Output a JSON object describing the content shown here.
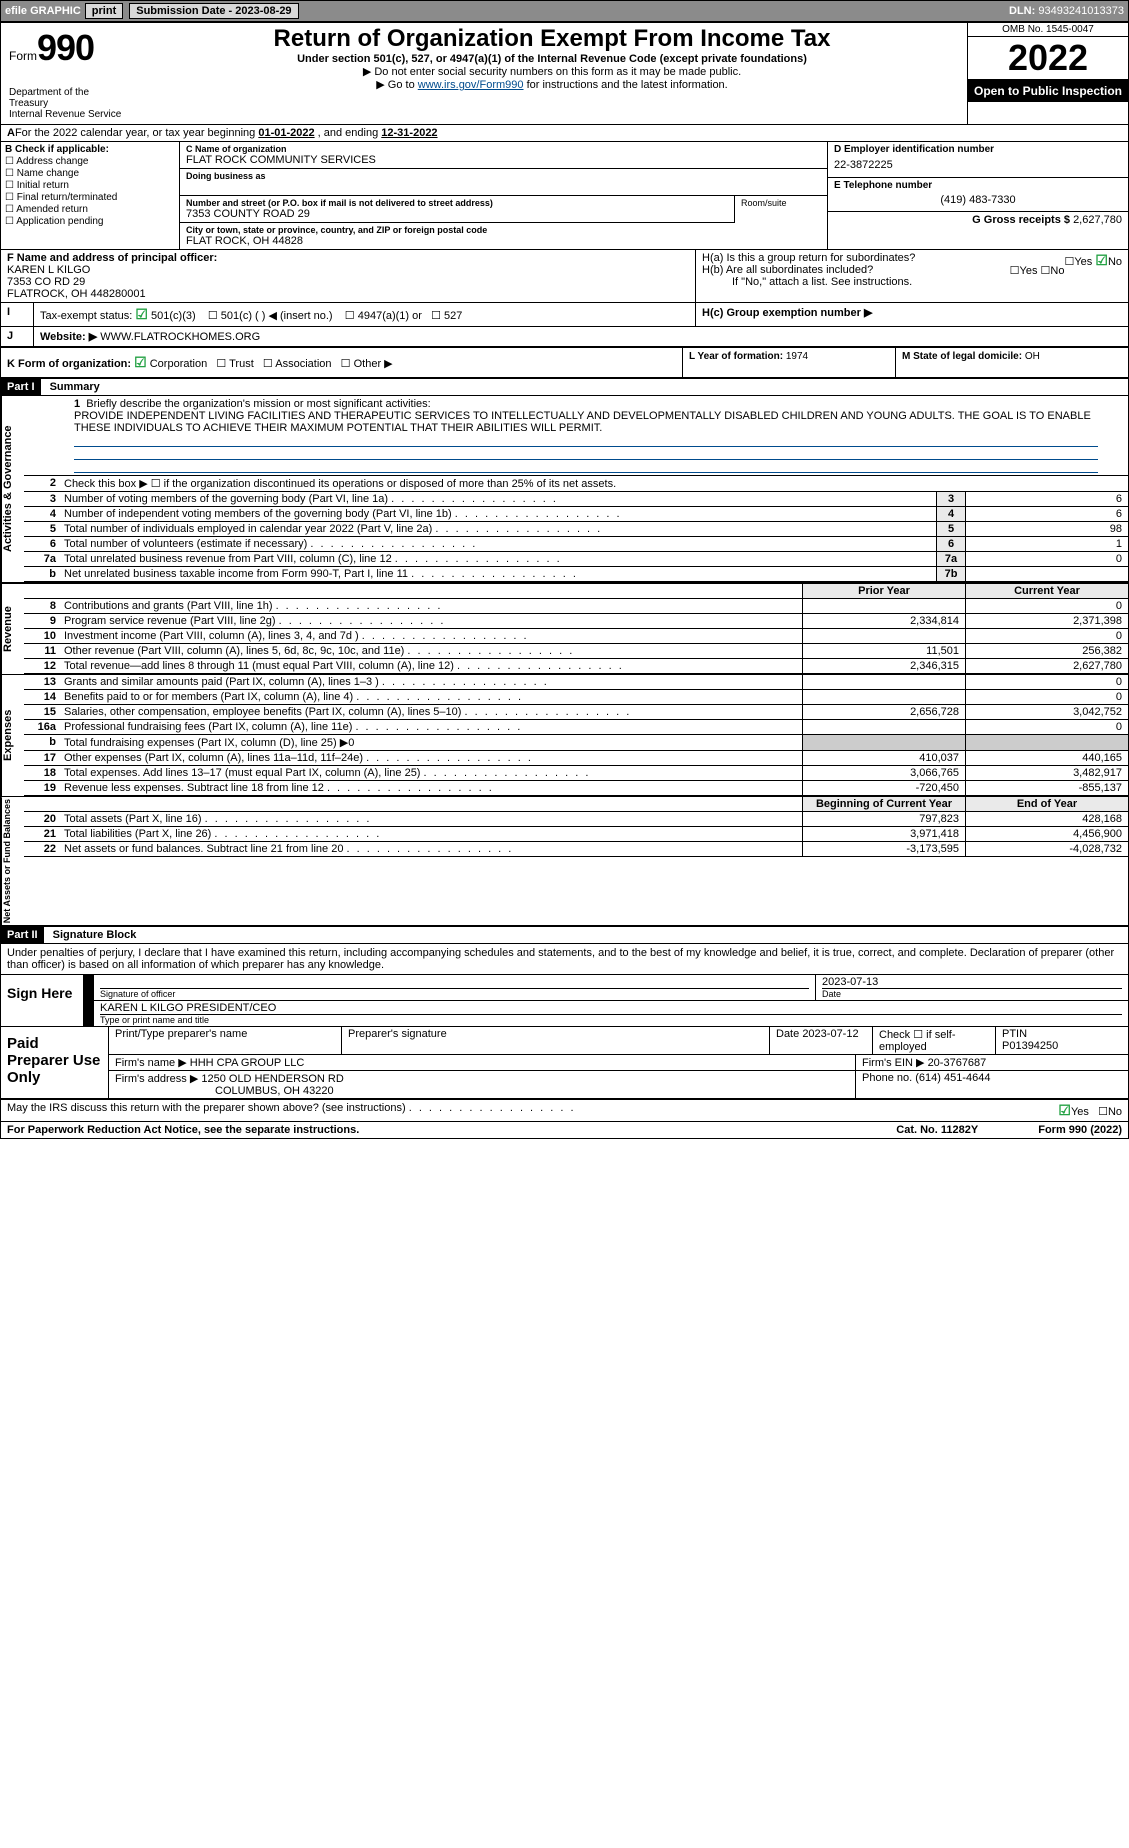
{
  "topbar": {
    "efile_label": "efile GRAPHIC",
    "print_btn": "print",
    "subdate_label": "Submission Date - ",
    "subdate": "2023-08-29",
    "dln_label": "DLN: ",
    "dln": "93493241013373"
  },
  "header": {
    "form_word": "Form",
    "form_num": "990",
    "title": "Return of Organization Exempt From Income Tax",
    "sub1": "Under section 501(c), 527, or 4947(a)(1) of the Internal Revenue Code (except private foundations)",
    "sub2": "▶ Do not enter social security numbers on this form as it may be made public.",
    "sub3_pre": "▶ Go to ",
    "sub3_link": "www.irs.gov/Form990",
    "sub3_post": " for instructions and the latest information.",
    "omb": "OMB No. 1545-0047",
    "year": "2022",
    "open": "Open to Public Inspection",
    "dept": "Department of the Treasury",
    "irs": "Internal Revenue Service"
  },
  "a": {
    "text_pre": "For the 2022 calendar year, or tax year beginning ",
    "begin": "01-01-2022",
    "text_mid": " , and ending ",
    "end": "12-31-2022"
  },
  "b": {
    "label": "B Check if applicable:",
    "items": [
      "Address change",
      "Name change",
      "Initial return",
      "Final return/terminated",
      "Amended return",
      "Application pending"
    ]
  },
  "c": {
    "name_lab": "C Name of organization",
    "name": "FLAT ROCK COMMUNITY SERVICES",
    "dba_lab": "Doing business as",
    "dba": "",
    "street_lab": "Number and street (or P.O. box if mail is not delivered to street address)",
    "street": "7353 COUNTY ROAD 29",
    "room_lab": "Room/suite",
    "city_lab": "City or town, state or province, country, and ZIP or foreign postal code",
    "city": "FLAT ROCK, OH  44828"
  },
  "d": {
    "lab": "D Employer identification number",
    "val": "22-3872225"
  },
  "e": {
    "lab": "E Telephone number",
    "val": "(419) 483-7330"
  },
  "g": {
    "lab": "G Gross receipts $ ",
    "val": "2,627,780"
  },
  "f": {
    "lab": "F  Name and address of principal officer:",
    "name": "KAREN L KILGO",
    "addr1": "7353 CO RD 29",
    "addr2": "FLATROCK, OH  448280001"
  },
  "h": {
    "a_lab": "H(a)  Is this a group return for subordinates?",
    "b_lab": "H(b)  Are all subordinates included?",
    "note": "If \"No,\" attach a list. See instructions.",
    "c_lab": "H(c)  Group exemption number ▶",
    "yes": "Yes",
    "no": "No"
  },
  "i": {
    "lab": "Tax-exempt status:",
    "o1": "501(c)(3)",
    "o2": "501(c) (   ) ◀ (insert no.)",
    "o3": "4947(a)(1) or",
    "o4": "527"
  },
  "j": {
    "lab": "Website: ▶",
    "val": "WWW.FLATROCKHOMES.ORG"
  },
  "k": {
    "lab": "K Form of organization:",
    "o1": "Corporation",
    "o2": "Trust",
    "o3": "Association",
    "o4": "Other ▶"
  },
  "l": {
    "lab": "L Year of formation: ",
    "val": "1974"
  },
  "m": {
    "lab": "M State of legal domicile: ",
    "val": "OH"
  },
  "part1": {
    "hdr": "Part I",
    "title": "Summary",
    "q1": "Briefly describe the organization's mission or most significant activities:",
    "mission": "PROVIDE INDEPENDENT LIVING FACILITIES AND THERAPEUTIC SERVICES TO INTELLECTUALLY AND DEVELOPMENTALLY DISABLED CHILDREN AND YOUNG ADULTS. THE GOAL IS TO ENABLE THESE INDIVIDUALS TO ACHIEVE THEIR MAXIMUM POTENTIAL THAT THEIR ABILITIES WILL PERMIT.",
    "q2": "Check this box ▶ ☐  if the organization discontinued its operations or disposed of more than 25% of its net assets.",
    "side_gov": "Activities & Governance",
    "side_rev": "Revenue",
    "side_exp": "Expenses",
    "side_net": "Net Assets or Fund Balances",
    "prior_year": "Prior Year",
    "current_year": "Current Year",
    "begin_year": "Beginning of Current Year",
    "end_year": "End of Year"
  },
  "gov_lines": [
    {
      "n": "3",
      "d": "Number of voting members of the governing body (Part VI, line 1a)",
      "c": "3",
      "v": "6"
    },
    {
      "n": "4",
      "d": "Number of independent voting members of the governing body (Part VI, line 1b)",
      "c": "4",
      "v": "6"
    },
    {
      "n": "5",
      "d": "Total number of individuals employed in calendar year 2022 (Part V, line 2a)",
      "c": "5",
      "v": "98"
    },
    {
      "n": "6",
      "d": "Total number of volunteers (estimate if necessary)",
      "c": "6",
      "v": "1"
    },
    {
      "n": "7a",
      "d": "Total unrelated business revenue from Part VIII, column (C), line 12",
      "c": "7a",
      "v": "0"
    },
    {
      "n": "b",
      "d": "Net unrelated business taxable income from Form 990-T, Part I, line 11",
      "c": "7b",
      "v": ""
    }
  ],
  "rev_lines": [
    {
      "n": "8",
      "d": "Contributions and grants (Part VIII, line 1h)",
      "p": "",
      "c": "0"
    },
    {
      "n": "9",
      "d": "Program service revenue (Part VIII, line 2g)",
      "p": "2,334,814",
      "c": "2,371,398"
    },
    {
      "n": "10",
      "d": "Investment income (Part VIII, column (A), lines 3, 4, and 7d )",
      "p": "",
      "c": "0"
    },
    {
      "n": "11",
      "d": "Other revenue (Part VIII, column (A), lines 5, 6d, 8c, 9c, 10c, and 11e)",
      "p": "11,501",
      "c": "256,382"
    },
    {
      "n": "12",
      "d": "Total revenue—add lines 8 through 11 (must equal Part VIII, column (A), line 12)",
      "p": "2,346,315",
      "c": "2,627,780"
    }
  ],
  "exp_lines": [
    {
      "n": "13",
      "d": "Grants and similar amounts paid (Part IX, column (A), lines 1–3 )",
      "p": "",
      "c": "0"
    },
    {
      "n": "14",
      "d": "Benefits paid to or for members (Part IX, column (A), line 4)",
      "p": "",
      "c": "0"
    },
    {
      "n": "15",
      "d": "Salaries, other compensation, employee benefits (Part IX, column (A), lines 5–10)",
      "p": "2,656,728",
      "c": "3,042,752"
    },
    {
      "n": "16a",
      "d": "Professional fundraising fees (Part IX, column (A), line 11e)",
      "p": "",
      "c": "0"
    },
    {
      "n": "b",
      "d": "Total fundraising expenses (Part IX, column (D), line 25) ▶0",
      "p": "—",
      "c": "—"
    },
    {
      "n": "17",
      "d": "Other expenses (Part IX, column (A), lines 11a–11d, 11f–24e)",
      "p": "410,037",
      "c": "440,165"
    },
    {
      "n": "18",
      "d": "Total expenses. Add lines 13–17 (must equal Part IX, column (A), line 25)",
      "p": "3,066,765",
      "c": "3,482,917"
    },
    {
      "n": "19",
      "d": "Revenue less expenses. Subtract line 18 from line 12",
      "p": "-720,450",
      "c": "-855,137"
    }
  ],
  "net_lines": [
    {
      "n": "20",
      "d": "Total assets (Part X, line 16)",
      "p": "797,823",
      "c": "428,168"
    },
    {
      "n": "21",
      "d": "Total liabilities (Part X, line 26)",
      "p": "3,971,418",
      "c": "4,456,900"
    },
    {
      "n": "22",
      "d": "Net assets or fund balances. Subtract line 21 from line 20",
      "p": "-3,173,595",
      "c": "-4,028,732"
    }
  ],
  "part2": {
    "hdr": "Part II",
    "title": "Signature Block",
    "decl": "Under penalties of perjury, I declare that I have examined this return, including accompanying schedules and statements, and to the best of my knowledge and belief, it is true, correct, and complete. Declaration of preparer (other than officer) is based on all information of which preparer has any knowledge."
  },
  "sign": {
    "lab": "Sign Here",
    "sig_lab": "Signature of officer",
    "date": "2023-07-13",
    "date_lab": "Date",
    "name": "KAREN L KILGO  PRESIDENT/CEO",
    "name_lab": "Type or print name and title"
  },
  "paid": {
    "lab": "Paid Preparer Use Only",
    "h1": "Print/Type preparer's name",
    "h2": "Preparer's signature",
    "h3": "Date",
    "date": "2023-07-12",
    "h4": "Check ☐ if self-employed",
    "h5": "PTIN",
    "ptin": "P01394250",
    "firm_lab": "Firm's name     ▶",
    "firm": "HHH CPA GROUP LLC",
    "ein_lab": "Firm's EIN ▶ ",
    "ein": "20-3767687",
    "addr_lab": "Firm's address ▶",
    "addr1": "1250 OLD HENDERSON RD",
    "addr2": "COLUMBUS, OH  43220",
    "phone_lab": "Phone no. ",
    "phone": "(614) 451-4644"
  },
  "footer": {
    "q": "May the IRS discuss this return with the preparer shown above? (see instructions)",
    "yes": "Yes",
    "no": "No",
    "pra": "For Paperwork Reduction Act Notice, see the separate instructions.",
    "cat": "Cat. No. 11282Y",
    "form": "Form 990 (2022)"
  }
}
